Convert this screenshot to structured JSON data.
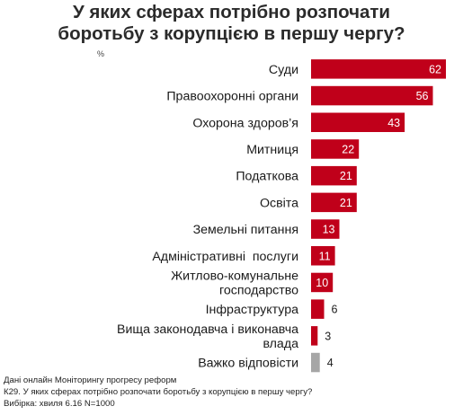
{
  "chart_data": {
    "type": "bar",
    "orientation": "horizontal",
    "title_lines": [
      "У яких сферах потрібно розпочати",
      "боротьбу з корупцією в першу чергу?"
    ],
    "unit": "%",
    "categories": [
      [
        "Суди"
      ],
      [
        "Правоохоронні органи"
      ],
      [
        "Охорона здоров’я"
      ],
      [
        "Митниця"
      ],
      [
        "Податкова"
      ],
      [
        "Освіта"
      ],
      [
        "Земельні питання"
      ],
      [
        "Адміністративні  послуги"
      ],
      [
        "Житлово-комунальне",
        "господарство"
      ],
      [
        "Інфраструктура"
      ],
      [
        "Вища законодавча і виконавча",
        "влада"
      ],
      [
        "Важко відповісти"
      ]
    ],
    "values": [
      62,
      56,
      43,
      22,
      21,
      21,
      13,
      11,
      10,
      6,
      3,
      4
    ],
    "value_labels": [
      "62",
      "56",
      "43",
      "22",
      "21",
      "21",
      "13",
      "11",
      "10",
      "6",
      "3",
      "4"
    ],
    "colors": {
      "main": "#c0001a",
      "no_answer": "#a6a6a6"
    },
    "no_answer_index": 11
  },
  "notes": {
    "source": "Дані онлайн Моніторингу прогресу реформ",
    "question": "К29. У яких сферах потрібно розпочати боротьбу з корупцією в першу чергу?",
    "sample": "Вибірка: хвиля 6.16 N=1000"
  }
}
